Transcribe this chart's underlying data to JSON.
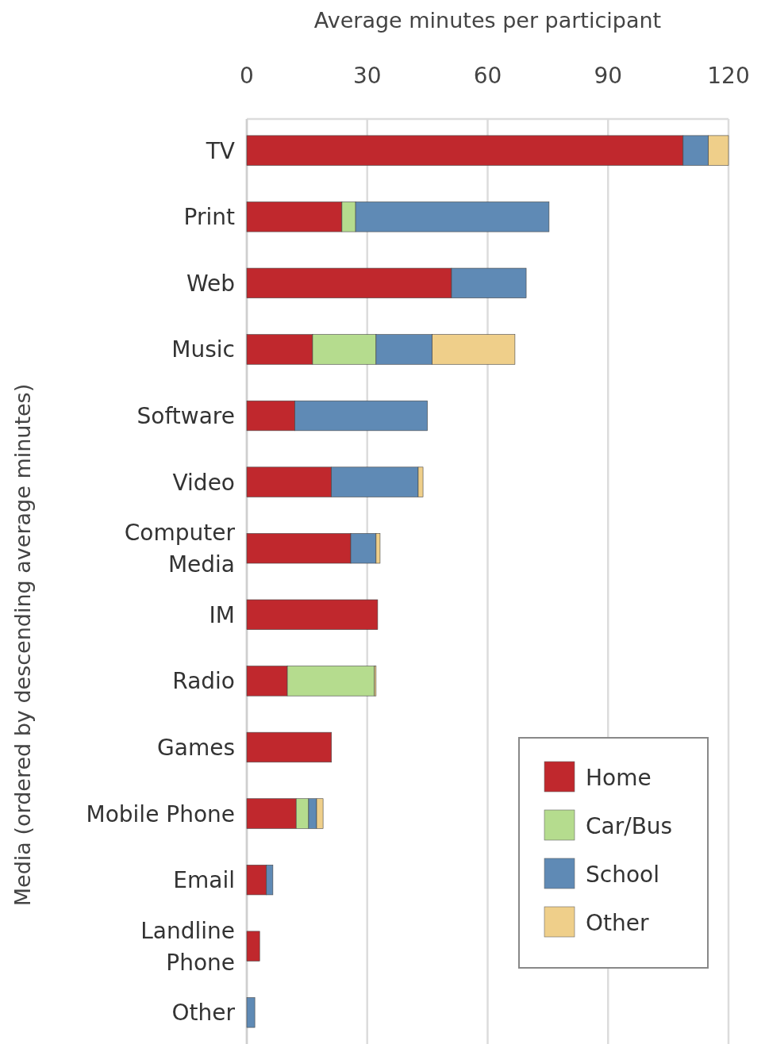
{
  "chart_data": {
    "type": "bar",
    "orientation": "horizontal",
    "stacked": true,
    "xlabel": "Average minutes per participant",
    "ylabel": "Media (ordered by descending average minutes)",
    "categories": [
      "TV",
      "Print",
      "Web",
      "Music",
      "Software",
      "Video",
      "Computer Media",
      "IM",
      "Radio",
      "Games",
      "Mobile Phone",
      "Email",
      "Landline Phone",
      "Other"
    ],
    "series": [
      {
        "name": "Home",
        "color": "#c0282d",
        "values": [
          108.7,
          23.7,
          51,
          16.4,
          12,
          21.1,
          25.9,
          32.6,
          10.1,
          21.1,
          12.3,
          4.9,
          3.2,
          null
        ]
      },
      {
        "name": "Car/Bus",
        "color": "#b5dc8e",
        "values": [
          null,
          3.4,
          null,
          15.8,
          null,
          null,
          null,
          null,
          21.7,
          null,
          3.1,
          null,
          null,
          null
        ]
      },
      {
        "name": "School",
        "color": "#5f8ab5",
        "values": [
          6.3,
          48.2,
          18.6,
          14,
          33,
          21.6,
          6.3,
          null,
          null,
          null,
          2,
          1.6,
          null,
          2
        ]
      },
      {
        "name": "Other",
        "color": "#efcf8a",
        "values": [
          5,
          null,
          null,
          20.6,
          null,
          1.2,
          1,
          null,
          0.4,
          null,
          1.6,
          null,
          null,
          null
        ]
      }
    ],
    "xlim": [
      0,
      120
    ],
    "xticks": [
      0,
      30,
      60,
      90,
      120
    ],
    "grid": "x",
    "legend": "bottom right"
  }
}
